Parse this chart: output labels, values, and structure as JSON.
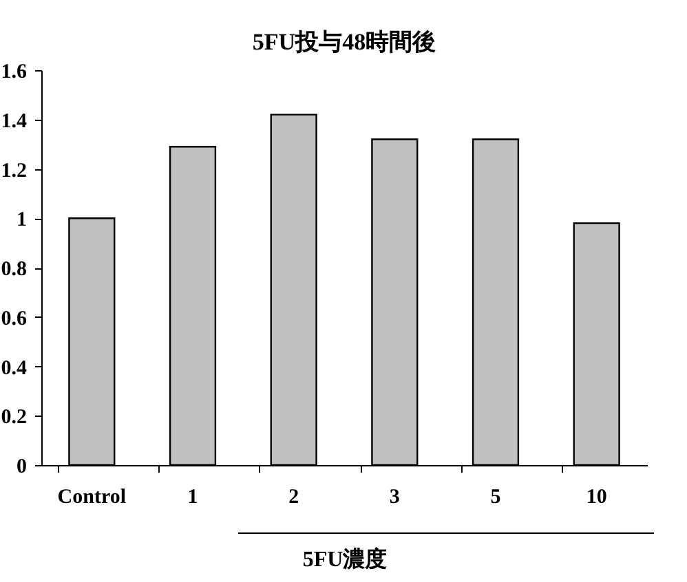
{
  "chart_data": {
    "type": "bar",
    "title": "5FU投与48時間後",
    "xlabel": "5FU濃度",
    "categories": [
      "Control",
      "1",
      "2",
      "3",
      "5",
      "10"
    ],
    "values": [
      1.0,
      1.29,
      1.42,
      1.32,
      1.32,
      0.98
    ],
    "color": "#c0c0c0",
    "ylim": [
      0,
      1.6
    ],
    "yticks": [
      0,
      0.2,
      0.4,
      0.6,
      0.8,
      1,
      1.2,
      1.4,
      1.6
    ],
    "grid": false
  }
}
